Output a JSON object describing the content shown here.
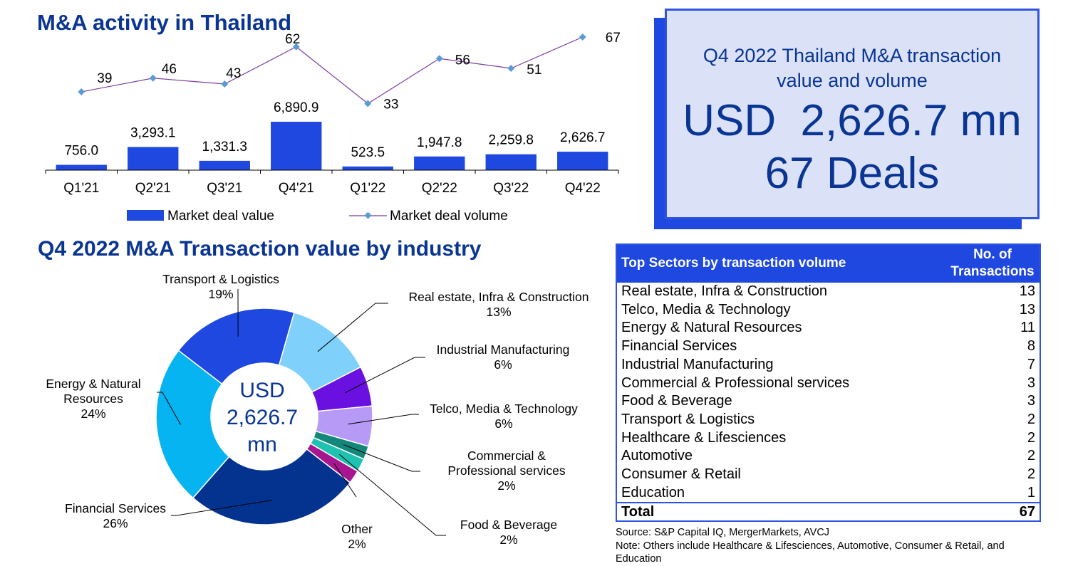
{
  "section1": {
    "title": "M&A activity in Thailand"
  },
  "section2": {
    "title": "Q4 2022 M&A Transaction value by industry"
  },
  "kpi": {
    "subtitle_line1": "Q4 2022 Thailand M&A transaction",
    "subtitle_line2": "value and volume",
    "value": "USD  2,626.7 mn",
    "deals": "67 Deals",
    "colors": {
      "background": "#dbe2f8",
      "border": "#2f55e0",
      "shadow": "#1f48e0",
      "text": "#0a3592"
    }
  },
  "chart_data": [
    {
      "type": "bar",
      "title": "M&A activity in Thailand",
      "categories": [
        "Q1'21",
        "Q2'21",
        "Q3'21",
        "Q4'21",
        "Q1'22",
        "Q2'22",
        "Q3'22",
        "Q4'22"
      ],
      "series": [
        {
          "name": "Market deal value",
          "kind": "bar",
          "color": "#1f48e0",
          "values": [
            756.0,
            3293.1,
            1331.3,
            6890.9,
            523.5,
            1947.8,
            2259.8,
            2626.7
          ],
          "labels": [
            "756.0",
            "3,293.1",
            "1,331.3",
            "6,890.9",
            "523.5",
            "1,947.8",
            "2,259.8",
            "2,626.7"
          ]
        },
        {
          "name": "Market deal volume",
          "kind": "line",
          "color": "#7b3fa0",
          "marker_color": "#5b9bd5",
          "values": [
            39,
            46,
            43,
            62,
            33,
            56,
            51,
            67
          ],
          "labels": [
            "39",
            "46",
            "43",
            "62",
            "33",
            "56",
            "51",
            "67"
          ]
        }
      ],
      "xlabel": "",
      "ylabel": "",
      "grid": false,
      "legend": "bottom"
    },
    {
      "type": "pie",
      "variant": "donut",
      "title": "Q4 2022 M&A Transaction value by industry",
      "center_label": [
        "USD",
        "2,626.7",
        "mn"
      ],
      "slices": [
        {
          "name": "Real estate, Infra & Construction",
          "value": 13,
          "label": "13%",
          "color": "#7fd0fb"
        },
        {
          "name": "Industrial Manufacturing",
          "value": 6,
          "label": "6%",
          "color": "#6a10e0"
        },
        {
          "name": "Telco, Media & Technology",
          "value": 6,
          "label": "6%",
          "color": "#b79af5"
        },
        {
          "name": "Commercial & Professional services",
          "value": 2,
          "label": "2%",
          "color": "#12877a"
        },
        {
          "name": "Food & Beverage",
          "value": 2,
          "label": "2%",
          "color": "#1ec2b0"
        },
        {
          "name": "Other",
          "value": 2,
          "label": "2%",
          "color": "#a8168f"
        },
        {
          "name": "Financial Services",
          "value": 26,
          "label": "26%",
          "color": "#04338f"
        },
        {
          "name": "Energy & Natural Resources",
          "value": 24,
          "label": "24%",
          "color": "#05b4f0"
        },
        {
          "name": "Transport & Logistics",
          "value": 19,
          "label": "19%",
          "color": "#1f48e0"
        }
      ],
      "legend": "none (callout labels)"
    }
  ],
  "table": {
    "header_sector": "Top Sectors by transaction volume",
    "header_count_line1": "No. of",
    "header_count_line2": "Transactions",
    "rows": [
      {
        "sector": "Real estate, Infra & Construction",
        "count": "13"
      },
      {
        "sector": "Telco, Media & Technology",
        "count": "13"
      },
      {
        "sector": "Energy & Natural Resources",
        "count": "11"
      },
      {
        "sector": "Financial Services",
        "count": "8"
      },
      {
        "sector": "Industrial Manufacturing",
        "count": "7"
      },
      {
        "sector": "Commercial & Professional services",
        "count": "3"
      },
      {
        "sector": "Food & Beverage",
        "count": "3"
      },
      {
        "sector": "Transport & Logistics",
        "count": "2"
      },
      {
        "sector": "Healthcare & Lifesciences",
        "count": "2"
      },
      {
        "sector": "Automotive",
        "count": "2"
      },
      {
        "sector": "Consumer & Retail",
        "count": "2"
      },
      {
        "sector": "Education",
        "count": "1"
      }
    ],
    "total_label": "Total",
    "total_value": "67"
  },
  "footnote": {
    "source": "Source: S&P Capital IQ, MergerMarkets, AVCJ",
    "note": "Note: Others include Healthcare & Lifesciences, Automotive, Consumer & Retail, and Education"
  }
}
